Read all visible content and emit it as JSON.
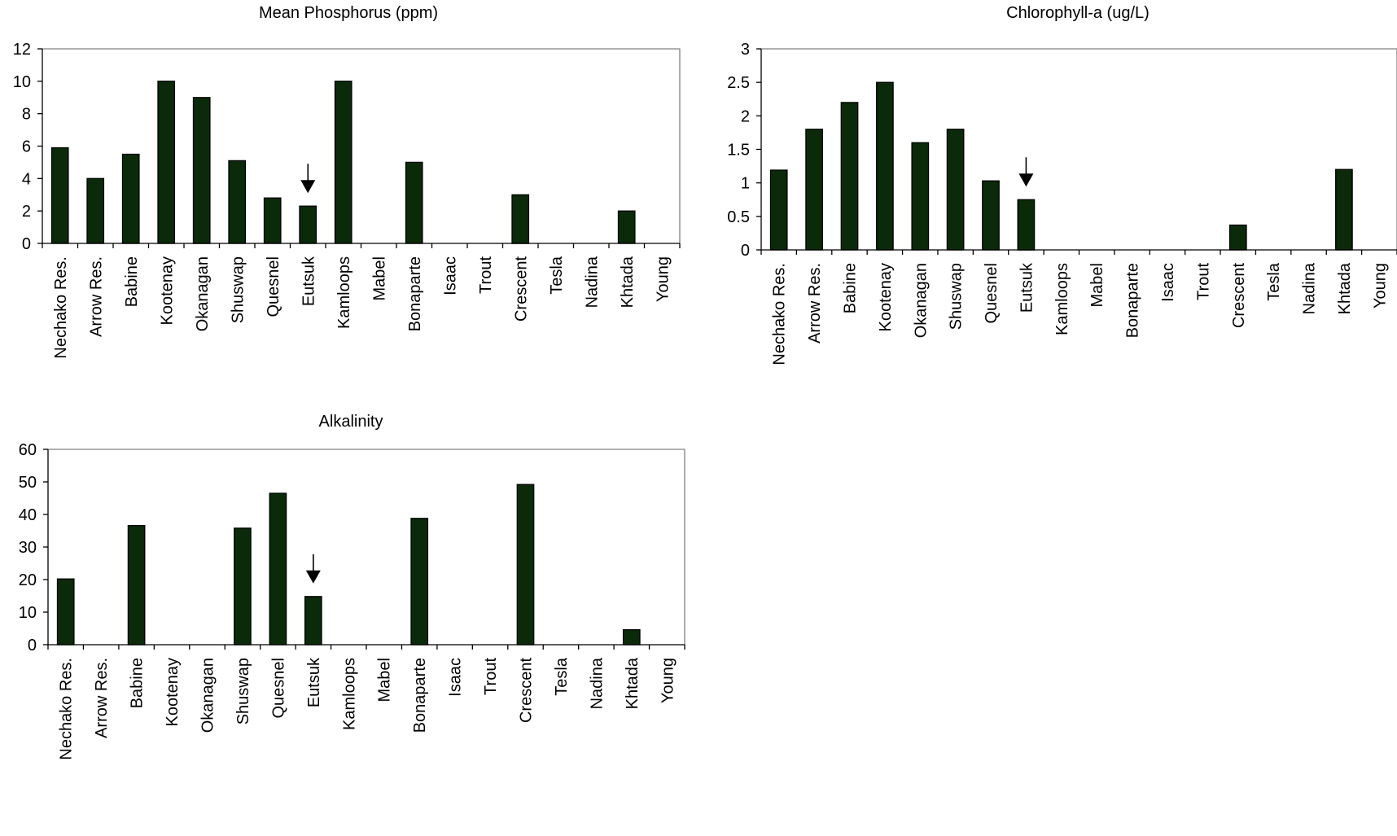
{
  "chart_data": [
    {
      "type": "bar",
      "title": "Mean Phosphorus (ppm)",
      "xlabel": "",
      "ylabel": "",
      "ylim": [
        0,
        12
      ],
      "yticks": [
        0,
        2,
        4,
        6,
        8,
        10,
        12
      ],
      "categories": [
        "Nechako Res.",
        "Arrow Res.",
        "Babine",
        "Kootenay",
        "Okanagan",
        "Shuswap",
        "Quesnel",
        "Eutsuk",
        "Kamloops",
        "Mabel",
        "Bonaparte",
        "Isaac",
        "Trout",
        "Crescent",
        "Tesla",
        "Nadina",
        "Khtada",
        "Young"
      ],
      "values": [
        5.9,
        4.0,
        5.5,
        10.0,
        9.0,
        5.1,
        2.8,
        2.3,
        10.0,
        null,
        5.0,
        null,
        null,
        3.0,
        null,
        null,
        2.0,
        null
      ],
      "bar_color": "#0a2a0a",
      "grid": false,
      "legend": "none",
      "annotations": [
        {
          "type": "arrow",
          "category": "Eutsuk",
          "direction": "down"
        }
      ]
    },
    {
      "type": "bar",
      "title": "Chlorophyll-a (ug/L)",
      "xlabel": "",
      "ylabel": "",
      "ylim": [
        0,
        3
      ],
      "yticks": [
        0,
        0.5,
        1,
        1.5,
        2,
        2.5,
        3
      ],
      "categories": [
        "Nechako Res.",
        "Arrow Res.",
        "Babine",
        "Kootenay",
        "Okanagan",
        "Shuswap",
        "Quesnel",
        "Eutsuk",
        "Kamloops",
        "Mabel",
        "Bonaparte",
        "Isaac",
        "Trout",
        "Crescent",
        "Tesla",
        "Nadina",
        "Khtada",
        "Young"
      ],
      "values": [
        1.19,
        1.8,
        2.2,
        2.5,
        1.6,
        1.8,
        1.03,
        0.75,
        null,
        null,
        null,
        null,
        null,
        0.37,
        null,
        null,
        1.2,
        null
      ],
      "bar_color": "#0a2a0a",
      "grid": false,
      "legend": "none",
      "annotations": [
        {
          "type": "arrow",
          "category": "Eutsuk",
          "direction": "down"
        }
      ]
    },
    {
      "type": "bar",
      "title": "Alkalinity",
      "xlabel": "",
      "ylabel": "",
      "ylim": [
        0,
        60
      ],
      "yticks": [
        0,
        10,
        20,
        30,
        40,
        50,
        60
      ],
      "categories": [
        "Nechako Res.",
        "Arrow Res.",
        "Babine",
        "Kootenay",
        "Okanagan",
        "Shuswap",
        "Quesnel",
        "Eutsuk",
        "Kamloops",
        "Mabel",
        "Bonaparte",
        "Isaac",
        "Trout",
        "Crescent",
        "Tesla",
        "Nadina",
        "Khtada",
        "Young"
      ],
      "values": [
        20.2,
        null,
        36.6,
        null,
        null,
        35.8,
        46.5,
        14.8,
        null,
        null,
        38.8,
        null,
        null,
        49.2,
        null,
        null,
        4.6,
        null
      ],
      "bar_color": "#0a2a0a",
      "grid": false,
      "legend": "none",
      "annotations": [
        {
          "type": "arrow",
          "category": "Eutsuk",
          "direction": "down"
        }
      ]
    }
  ]
}
